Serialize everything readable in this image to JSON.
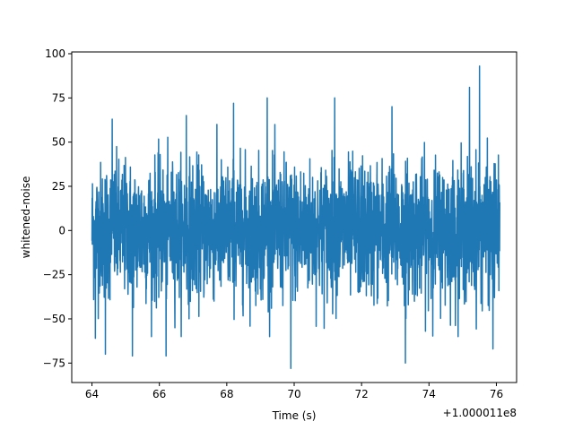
{
  "chart_data": {
    "type": "line",
    "xlabel": "Time (s)",
    "ylabel": "whitened-noise",
    "x_offset_label": "+1.000011e8",
    "x_unit_note": "seconds (tick labels shown relative to offset +1.000011e8)",
    "xlim": [
      63.4,
      76.6
    ],
    "ylim": [
      -86,
      101
    ],
    "x_ticks": [
      64,
      66,
      68,
      70,
      72,
      74,
      76
    ],
    "x_tick_labels": [
      "64",
      "66",
      "68",
      "70",
      "72",
      "74",
      "76"
    ],
    "y_ticks": [
      -75,
      -50,
      -25,
      0,
      25,
      50,
      75,
      100
    ],
    "y_tick_labels": [
      "−75",
      "−50",
      "−25",
      "0",
      "25",
      "50",
      "75",
      "100"
    ],
    "grid": false,
    "legend": "none",
    "series": [
      {
        "color": "#1f77b4",
        "x_range": [
          64.0,
          76.1
        ],
        "typical_band": [
          -40,
          42
        ],
        "notable_peaks": [
          {
            "x": 64.6,
            "y": 63
          },
          {
            "x": 66.8,
            "y": 65
          },
          {
            "x": 68.2,
            "y": 72
          },
          {
            "x": 69.2,
            "y": 75
          },
          {
            "x": 71.2,
            "y": 75
          },
          {
            "x": 72.9,
            "y": 70
          },
          {
            "x": 75.2,
            "y": 81
          },
          {
            "x": 75.5,
            "y": 93
          }
        ],
        "notable_troughs": [
          {
            "x": 64.1,
            "y": -61
          },
          {
            "x": 64.4,
            "y": -70
          },
          {
            "x": 65.2,
            "y": -71
          },
          {
            "x": 66.2,
            "y": -71
          },
          {
            "x": 69.9,
            "y": -78
          },
          {
            "x": 73.3,
            "y": -75
          },
          {
            "x": 75.9,
            "y": -67
          }
        ]
      }
    ]
  }
}
